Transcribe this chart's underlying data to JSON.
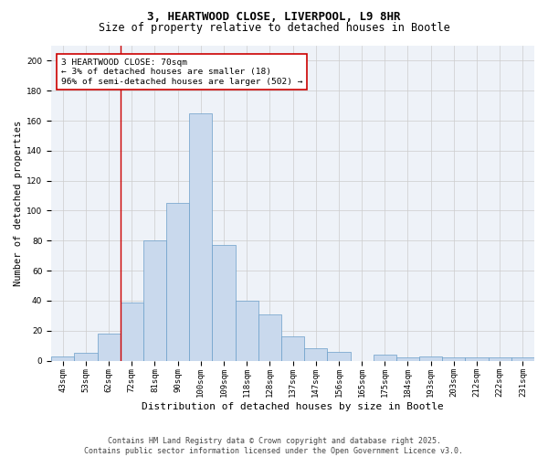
{
  "title_line1": "3, HEARTWOOD CLOSE, LIVERPOOL, L9 8HR",
  "title_line2": "Size of property relative to detached houses in Bootle",
  "xlabel": "Distribution of detached houses by size in Bootle",
  "ylabel": "Number of detached properties",
  "bin_labels": [
    "43sqm",
    "53sqm",
    "62sqm",
    "72sqm",
    "81sqm",
    "90sqm",
    "100sqm",
    "109sqm",
    "118sqm",
    "128sqm",
    "137sqm",
    "147sqm",
    "156sqm",
    "165sqm",
    "175sqm",
    "184sqm",
    "193sqm",
    "203sqm",
    "212sqm",
    "222sqm",
    "231sqm"
  ],
  "bar_heights": [
    3,
    5,
    18,
    39,
    80,
    105,
    165,
    77,
    40,
    31,
    16,
    8,
    6,
    0,
    4,
    2,
    3,
    2,
    2,
    2,
    2
  ],
  "bar_color": "#c9d9ed",
  "bar_edge_color": "#6a9ec9",
  "vline_color": "#cc0000",
  "vline_position": 2.5,
  "annotation_text": "3 HEARTWOOD CLOSE: 70sqm\n← 3% of detached houses are smaller (18)\n96% of semi-detached houses are larger (502) →",
  "annotation_box_edge": "#cc0000",
  "ylim": [
    0,
    210
  ],
  "yticks": [
    0,
    20,
    40,
    60,
    80,
    100,
    120,
    140,
    160,
    180,
    200
  ],
  "grid_color": "#cccccc",
  "bg_color": "#eef2f8",
  "footer_line1": "Contains HM Land Registry data © Crown copyright and database right 2025.",
  "footer_line2": "Contains public sector information licensed under the Open Government Licence v3.0.",
  "title_fontsize": 9,
  "subtitle_fontsize": 8.5,
  "axis_label_fontsize": 7.5,
  "tick_fontsize": 6.5,
  "annotation_fontsize": 6.8,
  "footer_fontsize": 6.0
}
